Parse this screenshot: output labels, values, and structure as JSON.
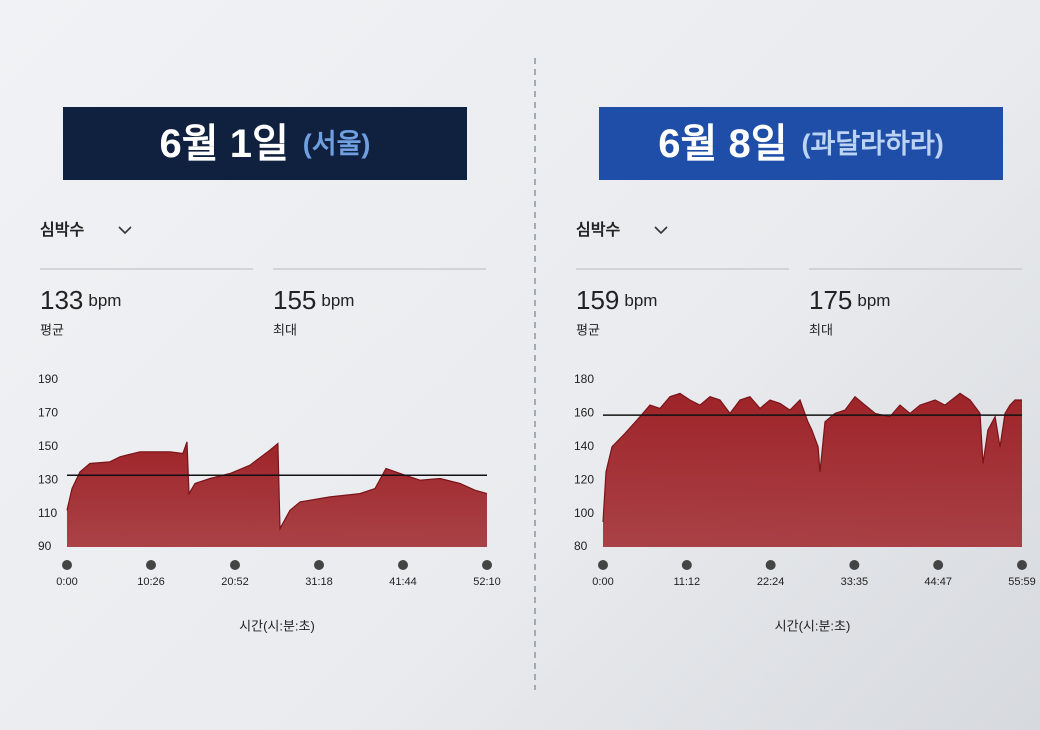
{
  "chart_data": [
    {
      "type": "area",
      "title": "6월 1일",
      "subtitle": "(서울)",
      "header_color": "#0f213f",
      "subtitle_color": "#6f9fe0",
      "metric": "심박수",
      "stats": [
        {
          "value": 133,
          "unit": "bpm",
          "label": "평균"
        },
        {
          "value": 155,
          "unit": "bpm",
          "label": "최대"
        }
      ],
      "x_label": "시간(시:분:초)",
      "x": [
        0,
        37,
        97,
        171,
        320,
        395,
        544,
        768,
        864,
        894,
        909,
        954,
        1066,
        1215,
        1364,
        1513,
        1572,
        1587,
        1662,
        1737,
        1960,
        2183,
        2295,
        2377,
        2482,
        2631,
        2780,
        2929,
        3040,
        3130
      ],
      "values": [
        112,
        125,
        135,
        140,
        141,
        144,
        147,
        147,
        146,
        153,
        122,
        128,
        131,
        134,
        139,
        148,
        152,
        101,
        112,
        117,
        120,
        122,
        125,
        137,
        134,
        130,
        131,
        128,
        124,
        122
      ],
      "color": "#9e2429",
      "xlim": [
        0,
        3130
      ],
      "xticks": [
        {
          "value": 0,
          "label": "0:00"
        },
        {
          "value": 626,
          "label": "10:26"
        },
        {
          "value": 1252,
          "label": "20:52"
        },
        {
          "value": 1878,
          "label": "31:18"
        },
        {
          "value": 2504,
          "label": "41:44"
        },
        {
          "value": 3130,
          "label": "52:10"
        }
      ],
      "ylim": [
        90,
        190
      ],
      "yticks": [
        90,
        110,
        130,
        150,
        170,
        190
      ]
    },
    {
      "type": "area",
      "title": "6월 8일",
      "subtitle": "(과달라하라)",
      "header_color": "#1f4ea8",
      "subtitle_color": "#bcd3f3",
      "metric": "심박수",
      "stats": [
        {
          "value": 159,
          "unit": "bpm",
          "label": "평균"
        },
        {
          "value": 175,
          "unit": "bpm",
          "label": "최대"
        }
      ],
      "x_label": "시간(시:분:초)",
      "x": [
        0,
        24,
        72,
        176,
        297,
        377,
        457,
        537,
        617,
        697,
        778,
        858,
        938,
        1018,
        1098,
        1178,
        1259,
        1339,
        1419,
        1499,
        1579,
        1643,
        1675,
        1724,
        1740,
        1780,
        1860,
        1940,
        2020,
        2100,
        2181,
        2301,
        2381,
        2461,
        2541,
        2662,
        2742,
        2862,
        2942,
        3022,
        3046,
        3086,
        3143,
        3183,
        3223,
        3263,
        3303,
        3359
      ],
      "values": [
        95,
        125,
        140,
        148,
        158,
        165,
        163,
        170,
        172,
        168,
        165,
        170,
        168,
        160,
        168,
        170,
        163,
        168,
        166,
        162,
        168,
        155,
        150,
        140,
        125,
        155,
        160,
        162,
        170,
        165,
        160,
        158,
        165,
        160,
        165,
        168,
        165,
        172,
        168,
        160,
        130,
        150,
        158,
        140,
        160,
        165,
        168,
        168
      ],
      "color": "#9e2429",
      "xlim": [
        0,
        3359
      ],
      "xticks": [
        {
          "value": 0,
          "label": "0:00"
        },
        {
          "value": 672,
          "label": "11:12"
        },
        {
          "value": 1344,
          "label": "22:24"
        },
        {
          "value": 2015,
          "label": "33:35"
        },
        {
          "value": 2687,
          "label": "44:47"
        },
        {
          "value": 3359,
          "label": "55:59"
        }
      ],
      "ylim": [
        80,
        180
      ],
      "yticks": [
        80,
        100,
        120,
        140,
        160,
        180
      ]
    }
  ]
}
